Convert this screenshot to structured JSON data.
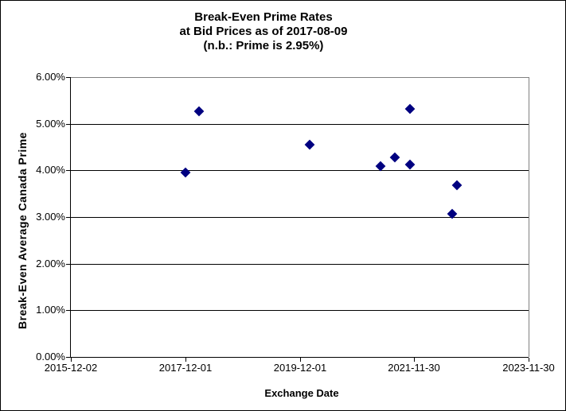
{
  "figure": {
    "title_line1": "Break-Even Prime Rates",
    "title_line2": "at Bid Prices as of 2017-08-09",
    "title_line3": "(n.b.: Prime is 2.95%)",
    "x_axis_title": "Exchange Date",
    "y_axis_title": "Break-Even Average Canada Prime"
  },
  "colors": {
    "marker": "#000080",
    "gridline": "#000000",
    "plot_border": "#808080",
    "axis": "#000000",
    "background": "#ffffff",
    "text": "#000000"
  },
  "chart_data": {
    "type": "scatter",
    "title": "Break-Even Prime Rates at Bid Prices as of 2017-08-09 (n.b.: Prime is 2.95%)",
    "xlabel": "Exchange Date",
    "ylabel": "Break-Even Average Canada Prime",
    "x_range": [
      "2015-12-02",
      "2023-11-30"
    ],
    "ylim": [
      0,
      6
    ],
    "x_ticks": [
      "2015-12-02",
      "2017-12-01",
      "2019-12-01",
      "2021-11-30",
      "2023-11-30"
    ],
    "y_ticks": [
      {
        "value": 6,
        "label": "6.00%"
      },
      {
        "value": 5,
        "label": "5.00%"
      },
      {
        "value": 4,
        "label": "4.00%"
      },
      {
        "value": 3,
        "label": "3.00%"
      },
      {
        "value": 2,
        "label": "2.00%"
      },
      {
        "value": 1,
        "label": "1.00%"
      },
      {
        "value": 0,
        "label": "0.00%"
      }
    ],
    "grid": "horizontal",
    "legend_position": "none",
    "marker_shape": "diamond",
    "points": [
      {
        "date": "2017-12-01",
        "value_pct": 3.95
      },
      {
        "date": "2018-03-01",
        "value_pct": 5.27
      },
      {
        "date": "2020-02-01",
        "value_pct": 4.55
      },
      {
        "date": "2021-05-01",
        "value_pct": 4.09
      },
      {
        "date": "2021-08-01",
        "value_pct": 4.27
      },
      {
        "date": "2021-11-01",
        "value_pct": 5.32
      },
      {
        "date": "2021-11-01",
        "value_pct": 4.12
      },
      {
        "date": "2022-08-01",
        "value_pct": 3.07
      },
      {
        "date": "2022-09-01",
        "value_pct": 3.69
      }
    ]
  }
}
